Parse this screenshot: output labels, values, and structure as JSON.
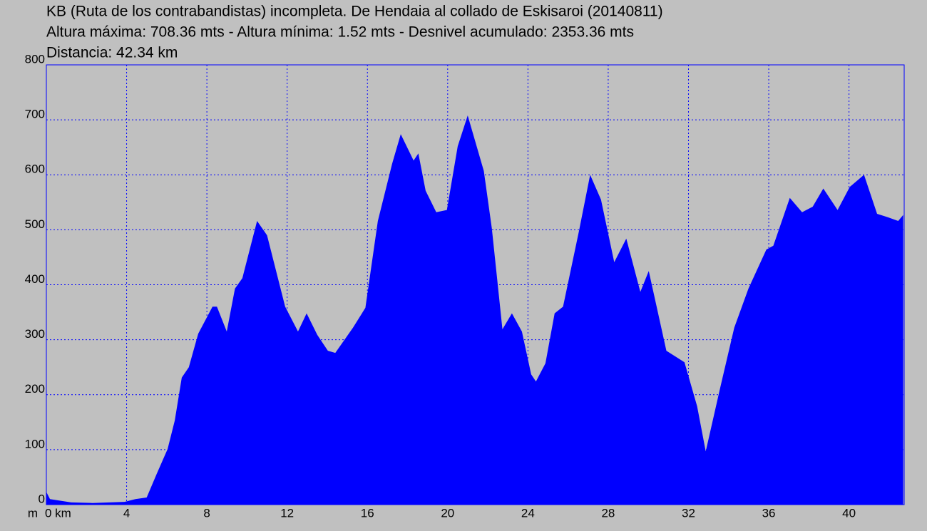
{
  "chart_data": {
    "type": "area",
    "title": "KB (Ruta de los contrabandistas) incompleta. De Hendaia al collado de Eskisaroi (20140811)",
    "subtitle": "Altura máxima: 708.36 mts - Altura mínima: 1.52 mts - Desnivel acumulado: 2353.36 mts",
    "annotation": "Distancia: 42.34 km",
    "y_label": "m",
    "color": "#0000ff",
    "grid": true,
    "xlim": [
      0,
      42.75
    ],
    "ylim": [
      0,
      800
    ],
    "xticks": [
      {
        "value": 0,
        "label": "0 km"
      },
      4,
      8,
      12,
      16,
      20,
      24,
      28,
      32,
      36,
      40
    ],
    "yticks": [
      0,
      100,
      200,
      300,
      400,
      500,
      600,
      700,
      800
    ],
    "x": [
      0,
      0.18,
      1.24,
      2.3,
      3.9,
      4.44,
      5,
      5.5,
      6.04,
      6.4,
      6.75,
      7.1,
      7.57,
      8.28,
      8.5,
      8.99,
      9.4,
      9.77,
      10.5,
      11,
      11.9,
      12.54,
      12.97,
      13.5,
      14.03,
      14.4,
      15.28,
      15.9,
      16.52,
      17.23,
      17.66,
      18.3,
      18.54,
      18.9,
      19.43,
      19.96,
      20.5,
      21,
      21.8,
      22.2,
      22.73,
      23.2,
      23.7,
      24.16,
      24.4,
      24.87,
      25.33,
      25.75,
      26.54,
      27.1,
      27.64,
      28.3,
      28.9,
      29.6,
      30.02,
      30.9,
      31.8,
      32.43,
      32.86,
      33.57,
      34.28,
      34.99,
      35.88,
      36.23,
      37.05,
      37.66,
      38.19,
      38.72,
      39.43,
      40.04,
      40.75,
      41.4,
      41.92,
      42.45,
      42.7
    ],
    "values": [
      23,
      10,
      4,
      3,
      5,
      10,
      13,
      56,
      101,
      153,
      231,
      250,
      311,
      360,
      360,
      315,
      393,
      412,
      516,
      490,
      360,
      315,
      348,
      309,
      280,
      276,
      322,
      358,
      516,
      620,
      674,
      626,
      639,
      571,
      532,
      536,
      652,
      708,
      607,
      503,
      319,
      348,
      315,
      237,
      224,
      257,
      348,
      360,
      497,
      600,
      555,
      441,
      484,
      387,
      425,
      280,
      259,
      179,
      97,
      211,
      322,
      393,
      464,
      471,
      558,
      532,
      542,
      575,
      536,
      578,
      600,
      529,
      523,
      516,
      527
    ]
  }
}
